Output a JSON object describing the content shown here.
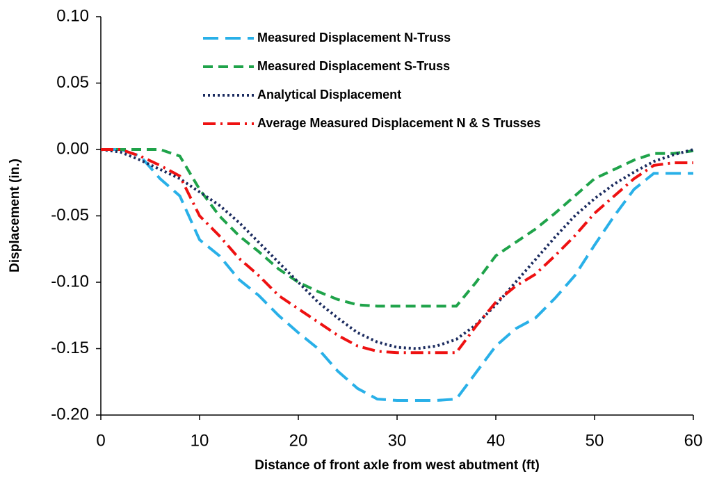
{
  "chart_data": {
    "type": "line",
    "xlabel": "Distance of front axle from west abutment (ft)",
    "ylabel": "Displacement (in.)",
    "x": [
      0,
      2,
      4,
      6,
      8,
      10,
      12,
      14,
      16,
      18,
      20,
      22,
      24,
      26,
      28,
      30,
      32,
      34,
      36,
      38,
      40,
      42,
      44,
      46,
      48,
      50,
      52,
      54,
      56,
      58,
      60
    ],
    "series": [
      {
        "name": "Measured Displacement  N-Truss",
        "color": "#29b0e8",
        "style": "longdash",
        "values": [
          0,
          0,
          -0.005,
          -0.022,
          -0.035,
          -0.068,
          -0.08,
          -0.098,
          -0.11,
          -0.125,
          -0.138,
          -0.15,
          -0.167,
          -0.18,
          -0.188,
          -0.189,
          -0.189,
          -0.189,
          -0.188,
          -0.168,
          -0.148,
          -0.135,
          -0.127,
          -0.112,
          -0.095,
          -0.072,
          -0.05,
          -0.03,
          -0.018,
          -0.018,
          -0.018
        ]
      },
      {
        "name": "Measured Displacement S-Truss",
        "color": "#1fa34a",
        "style": "dash",
        "values": [
          0,
          0,
          0,
          0,
          -0.005,
          -0.03,
          -0.05,
          -0.065,
          -0.077,
          -0.09,
          -0.1,
          -0.107,
          -0.113,
          -0.117,
          -0.118,
          -0.118,
          -0.118,
          -0.118,
          -0.118,
          -0.1,
          -0.08,
          -0.07,
          -0.06,
          -0.048,
          -0.035,
          -0.022,
          -0.015,
          -0.008,
          -0.003,
          -0.003,
          -0.001
        ]
      },
      {
        "name": "Analytical Displacement",
        "color": "#1a2a5e",
        "style": "dot",
        "values": [
          0,
          -0.002,
          -0.008,
          -0.015,
          -0.022,
          -0.032,
          -0.042,
          -0.055,
          -0.07,
          -0.085,
          -0.1,
          -0.115,
          -0.127,
          -0.138,
          -0.145,
          -0.149,
          -0.15,
          -0.148,
          -0.143,
          -0.132,
          -0.117,
          -0.1,
          -0.083,
          -0.066,
          -0.05,
          -0.037,
          -0.026,
          -0.017,
          -0.009,
          -0.004,
          0
        ]
      },
      {
        "name": "Average Measured Displacement N & S Trusses",
        "color": "#ee1111",
        "style": "dashdot",
        "values": [
          0,
          0,
          -0.005,
          -0.012,
          -0.02,
          -0.05,
          -0.065,
          -0.082,
          -0.095,
          -0.11,
          -0.12,
          -0.13,
          -0.14,
          -0.148,
          -0.152,
          -0.153,
          -0.153,
          -0.153,
          -0.153,
          -0.133,
          -0.115,
          -0.103,
          -0.094,
          -0.08,
          -0.065,
          -0.048,
          -0.035,
          -0.022,
          -0.012,
          -0.01,
          -0.01
        ]
      }
    ],
    "xlim": [
      0,
      60
    ],
    "xticks": [
      0,
      10,
      20,
      30,
      40,
      50,
      60
    ],
    "ylim": [
      -0.2,
      0.1
    ],
    "yticks": [
      {
        "value": -0.2,
        "label": "-0.20"
      },
      {
        "value": -0.15,
        "label": "-0.15"
      },
      {
        "value": -0.1,
        "label": "-0.10"
      },
      {
        "value": -0.05,
        "label": "-0.05"
      },
      {
        "value": 0,
        "label": "0.00"
      },
      {
        "value": 0.05,
        "label": "0.05"
      },
      {
        "value": 0.1,
        "label": "0.10"
      }
    ],
    "grid": false,
    "legend": "top"
  }
}
